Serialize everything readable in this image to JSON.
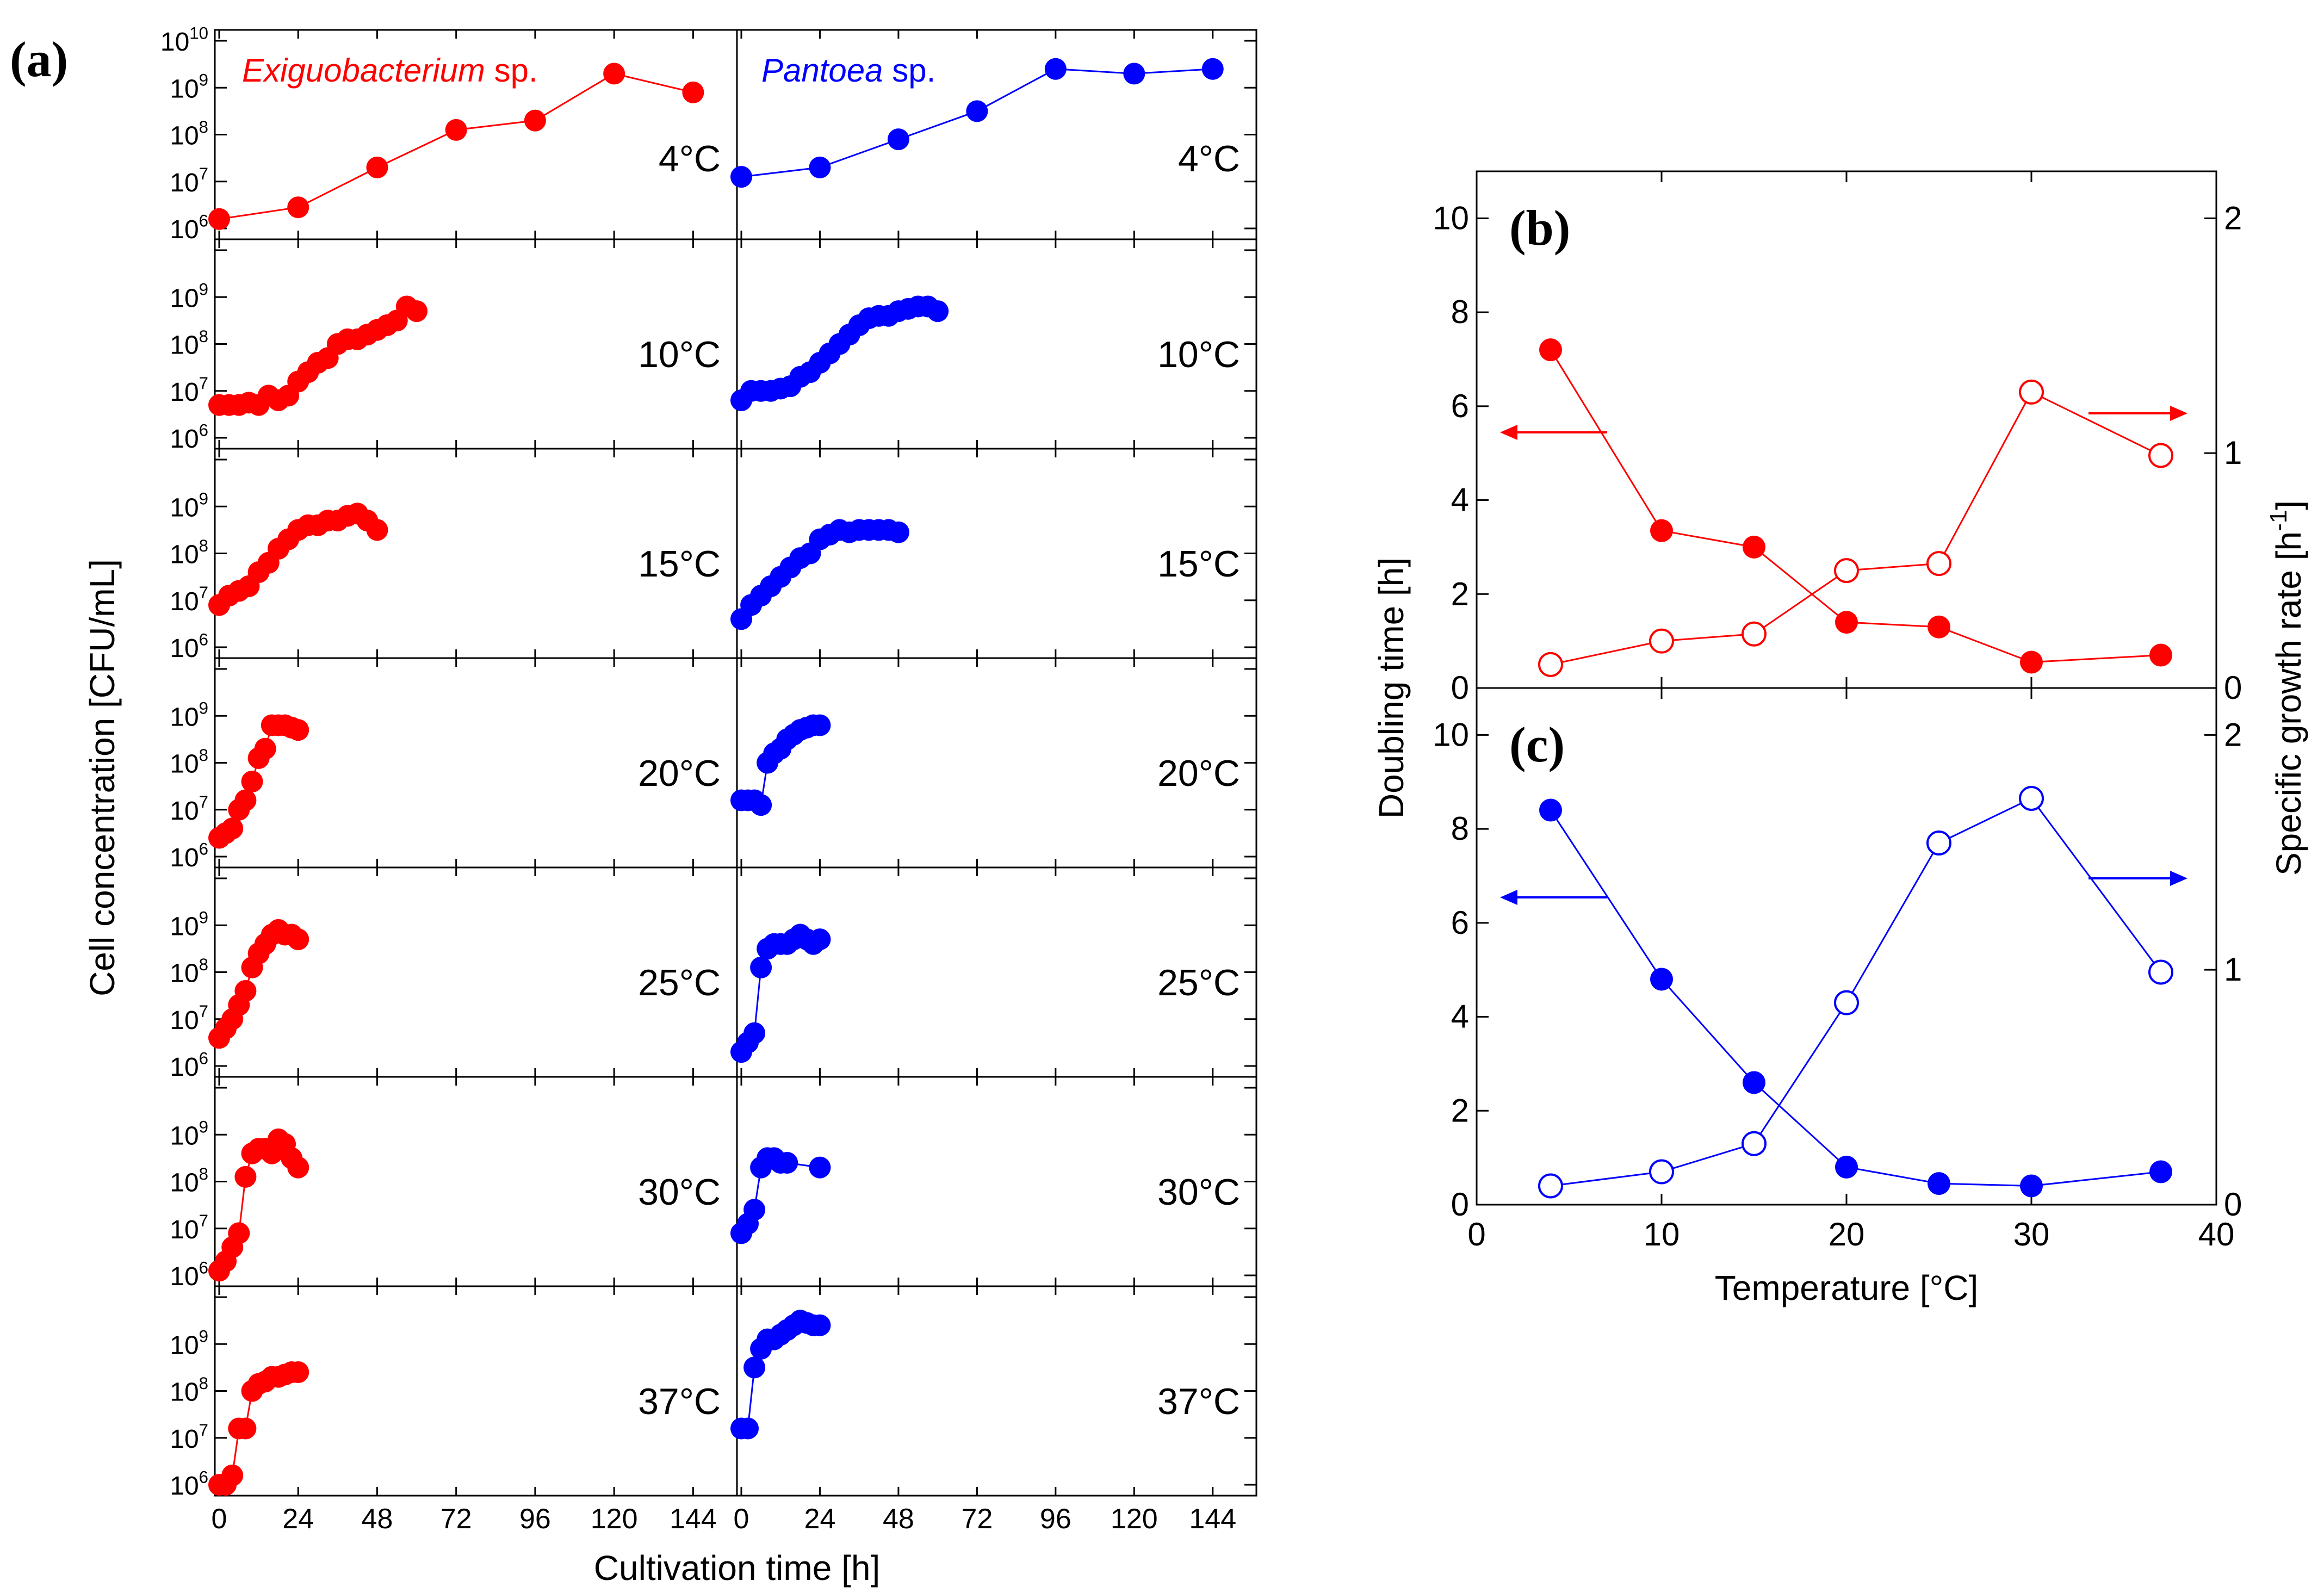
{
  "colors": {
    "exiguo": "#ff0000",
    "pantoea": "#0000ff",
    "axis": "#000000"
  },
  "panel_a": {
    "label": "(a)",
    "ylabel": "Cell concentration [CFU/mL]",
    "xlabel": "Cultivation time [h]",
    "x_ticks": [
      "0",
      "24",
      "48",
      "72",
      "96",
      "120",
      "144"
    ],
    "y_ticks_top": [
      {
        "base": "10",
        "exp": "10"
      },
      {
        "base": "10",
        "exp": "9"
      },
      {
        "base": "10",
        "exp": "8"
      },
      {
        "base": "10",
        "exp": "7"
      },
      {
        "base": "10",
        "exp": "6"
      }
    ],
    "left_title": {
      "genus": "Exiguobacterium",
      "suffix": "sp."
    },
    "right_title": {
      "genus": "Pantoea",
      "suffix": "sp."
    },
    "rows": [
      {
        "temp": "4°C",
        "exiguo": [
          [
            0,
            6.2
          ],
          [
            24,
            6.45
          ],
          [
            48,
            7.3
          ],
          [
            72,
            8.1
          ],
          [
            96,
            8.3
          ],
          [
            120,
            9.3
          ],
          [
            144,
            8.9
          ]
        ],
        "pantoea": [
          [
            0,
            7.1
          ],
          [
            24,
            7.3
          ],
          [
            48,
            7.9
          ],
          [
            72,
            8.5
          ],
          [
            96,
            9.4
          ],
          [
            120,
            9.3
          ],
          [
            144,
            9.4
          ]
        ]
      },
      {
        "temp": "10°C",
        "exiguo": [
          [
            0,
            6.7
          ],
          [
            3,
            6.7
          ],
          [
            6,
            6.7
          ],
          [
            9,
            6.75
          ],
          [
            12,
            6.7
          ],
          [
            15,
            6.9
          ],
          [
            18,
            6.8
          ],
          [
            21,
            6.9
          ],
          [
            24,
            7.2
          ],
          [
            27,
            7.4
          ],
          [
            30,
            7.6
          ],
          [
            33,
            7.7
          ],
          [
            36,
            8.0
          ],
          [
            39,
            8.1
          ],
          [
            42,
            8.1
          ],
          [
            45,
            8.2
          ],
          [
            48,
            8.3
          ],
          [
            51,
            8.4
          ],
          [
            54,
            8.5
          ],
          [
            57,
            8.8
          ],
          [
            60,
            8.7
          ]
        ],
        "pantoea": [
          [
            0,
            6.8
          ],
          [
            3,
            7.0
          ],
          [
            6,
            7.0
          ],
          [
            9,
            7.0
          ],
          [
            12,
            7.05
          ],
          [
            15,
            7.1
          ],
          [
            18,
            7.3
          ],
          [
            21,
            7.4
          ],
          [
            24,
            7.6
          ],
          [
            27,
            7.8
          ],
          [
            30,
            8.0
          ],
          [
            33,
            8.2
          ],
          [
            36,
            8.4
          ],
          [
            39,
            8.55
          ],
          [
            42,
            8.6
          ],
          [
            45,
            8.6
          ],
          [
            48,
            8.7
          ],
          [
            51,
            8.75
          ],
          [
            54,
            8.8
          ],
          [
            57,
            8.8
          ],
          [
            60,
            8.7
          ]
        ]
      },
      {
        "temp": "15°C",
        "exiguo": [
          [
            0,
            6.9
          ],
          [
            3,
            7.1
          ],
          [
            6,
            7.2
          ],
          [
            9,
            7.3
          ],
          [
            12,
            7.6
          ],
          [
            15,
            7.8
          ],
          [
            18,
            8.1
          ],
          [
            21,
            8.3
          ],
          [
            24,
            8.5
          ],
          [
            27,
            8.6
          ],
          [
            30,
            8.6
          ],
          [
            33,
            8.7
          ],
          [
            36,
            8.7
          ],
          [
            39,
            8.8
          ],
          [
            42,
            8.85
          ],
          [
            45,
            8.7
          ],
          [
            48,
            8.5
          ]
        ],
        "pantoea": [
          [
            0,
            6.6
          ],
          [
            3,
            6.9
          ],
          [
            6,
            7.1
          ],
          [
            9,
            7.3
          ],
          [
            12,
            7.5
          ],
          [
            15,
            7.7
          ],
          [
            18,
            7.9
          ],
          [
            21,
            8.0
          ],
          [
            24,
            8.3
          ],
          [
            27,
            8.4
          ],
          [
            30,
            8.5
          ],
          [
            33,
            8.45
          ],
          [
            36,
            8.5
          ],
          [
            39,
            8.5
          ],
          [
            42,
            8.5
          ],
          [
            45,
            8.5
          ],
          [
            48,
            8.45
          ]
        ]
      },
      {
        "temp": "20°C",
        "exiguo": [
          [
            0,
            6.4
          ],
          [
            2,
            6.5
          ],
          [
            4,
            6.6
          ],
          [
            6,
            7.0
          ],
          [
            8,
            7.2
          ],
          [
            10,
            7.6
          ],
          [
            12,
            8.1
          ],
          [
            14,
            8.3
          ],
          [
            16,
            8.8
          ],
          [
            18,
            8.8
          ],
          [
            20,
            8.8
          ],
          [
            22,
            8.75
          ],
          [
            24,
            8.7
          ]
        ],
        "pantoea": [
          [
            0,
            7.2
          ],
          [
            2,
            7.2
          ],
          [
            4,
            7.2
          ],
          [
            6,
            7.1
          ],
          [
            8,
            8.0
          ],
          [
            10,
            8.2
          ],
          [
            12,
            8.3
          ],
          [
            14,
            8.5
          ],
          [
            16,
            8.6
          ],
          [
            18,
            8.7
          ],
          [
            20,
            8.75
          ],
          [
            22,
            8.8
          ],
          [
            24,
            8.8
          ]
        ]
      },
      {
        "temp": "25°C",
        "exiguo": [
          [
            0,
            6.6
          ],
          [
            2,
            6.8
          ],
          [
            4,
            7.0
          ],
          [
            6,
            7.3
          ],
          [
            8,
            7.6
          ],
          [
            10,
            8.1
          ],
          [
            12,
            8.4
          ],
          [
            14,
            8.6
          ],
          [
            16,
            8.8
          ],
          [
            18,
            8.9
          ],
          [
            20,
            8.8
          ],
          [
            22,
            8.8
          ],
          [
            24,
            8.7
          ]
        ],
        "pantoea": [
          [
            0,
            6.3
          ],
          [
            2,
            6.5
          ],
          [
            4,
            6.7
          ],
          [
            6,
            8.1
          ],
          [
            8,
            8.5
          ],
          [
            10,
            8.6
          ],
          [
            12,
            8.6
          ],
          [
            14,
            8.6
          ],
          [
            16,
            8.7
          ],
          [
            18,
            8.8
          ],
          [
            20,
            8.7
          ],
          [
            22,
            8.6
          ],
          [
            24,
            8.7
          ]
        ]
      },
      {
        "temp": "30°C",
        "exiguo": [
          [
            0,
            6.1
          ],
          [
            2,
            6.3
          ],
          [
            4,
            6.6
          ],
          [
            6,
            6.9
          ],
          [
            8,
            8.1
          ],
          [
            10,
            8.6
          ],
          [
            12,
            8.7
          ],
          [
            14,
            8.7
          ],
          [
            16,
            8.6
          ],
          [
            18,
            8.9
          ],
          [
            20,
            8.8
          ],
          [
            22,
            8.5
          ],
          [
            24,
            8.3
          ]
        ],
        "pantoea": [
          [
            0,
            6.9
          ],
          [
            2,
            7.1
          ],
          [
            4,
            7.4
          ],
          [
            6,
            8.3
          ],
          [
            8,
            8.5
          ],
          [
            10,
            8.5
          ],
          [
            12,
            8.4
          ],
          [
            14,
            8.4
          ],
          [
            24,
            8.3
          ]
        ]
      },
      {
        "temp": "37°C",
        "exiguo": [
          [
            0,
            6.0
          ],
          [
            2,
            6.0
          ],
          [
            4,
            6.2
          ],
          [
            6,
            7.2
          ],
          [
            8,
            7.2
          ],
          [
            10,
            8.0
          ],
          [
            12,
            8.15
          ],
          [
            14,
            8.2
          ],
          [
            16,
            8.3
          ],
          [
            18,
            8.3
          ],
          [
            20,
            8.35
          ],
          [
            22,
            8.4
          ],
          [
            24,
            8.4
          ]
        ],
        "pantoea": [
          [
            0,
            7.2
          ],
          [
            2,
            7.2
          ],
          [
            4,
            8.5
          ],
          [
            6,
            8.9
          ],
          [
            8,
            9.1
          ],
          [
            10,
            9.1
          ],
          [
            12,
            9.2
          ],
          [
            14,
            9.3
          ],
          [
            16,
            9.4
          ],
          [
            18,
            9.5
          ],
          [
            20,
            9.45
          ],
          [
            22,
            9.4
          ],
          [
            24,
            9.4
          ]
        ]
      }
    ]
  },
  "chart_data": [
    {
      "type": "line",
      "title": "(b)",
      "xlabel": "Temperature [°C]",
      "ylabel": "Doubling time [h]",
      "y2label": "Specific growth rate [h-1]",
      "xlim": [
        0,
        40
      ],
      "ylim": [
        0,
        11
      ],
      "y2lim": [
        0,
        2.2
      ],
      "x_ticks": [
        "0",
        "10",
        "20",
        "30",
        "40"
      ],
      "y_ticks": [
        "0",
        "2",
        "4",
        "6",
        "8",
        "10"
      ],
      "y2_ticks": [
        "0",
        "1",
        "2"
      ],
      "series": [
        {
          "name": "Doubling time",
          "axis": "left",
          "marker": "filled",
          "color": "#ff0000",
          "x": [
            4,
            10,
            15,
            20,
            25,
            30,
            37
          ],
          "values": [
            7.2,
            3.35,
            3.0,
            1.4,
            1.3,
            0.55,
            0.7
          ]
        },
        {
          "name": "Specific growth rate",
          "axis": "right",
          "marker": "open",
          "color": "#ff0000",
          "x": [
            4,
            10,
            15,
            20,
            25,
            30,
            37
          ],
          "values": [
            0.1,
            0.2,
            0.23,
            0.5,
            0.53,
            1.26,
            0.99
          ]
        }
      ]
    },
    {
      "type": "line",
      "title": "(c)",
      "xlabel": "Temperature [°C]",
      "ylabel": "Doubling time [h]",
      "y2label": "Specific growth rate [h-1]",
      "xlim": [
        0,
        40
      ],
      "ylim": [
        0,
        11
      ],
      "y2lim": [
        0,
        2.2
      ],
      "x_ticks": [
        "0",
        "10",
        "20",
        "30",
        "40"
      ],
      "y_ticks": [
        "0",
        "2",
        "4",
        "6",
        "8",
        "10"
      ],
      "y2_ticks": [
        "0",
        "1",
        "2"
      ],
      "series": [
        {
          "name": "Doubling time",
          "axis": "left",
          "marker": "filled",
          "color": "#0000ff",
          "x": [
            4,
            10,
            15,
            20,
            25,
            30,
            37
          ],
          "values": [
            8.4,
            4.8,
            2.6,
            0.8,
            0.45,
            0.4,
            0.7
          ]
        },
        {
          "name": "Specific growth rate",
          "axis": "right",
          "marker": "open",
          "color": "#0000ff",
          "x": [
            4,
            10,
            15,
            20,
            25,
            30,
            37
          ],
          "values": [
            0.08,
            0.14,
            0.26,
            0.86,
            1.54,
            1.73,
            0.99
          ]
        }
      ]
    }
  ],
  "panel_bc": {
    "xlabel": "Temperature [°C]",
    "ylabel": "Doubling time [h]",
    "y2label": {
      "text": "Specific growth rate [h",
      "sup": "-1",
      "tail": "]"
    }
  }
}
